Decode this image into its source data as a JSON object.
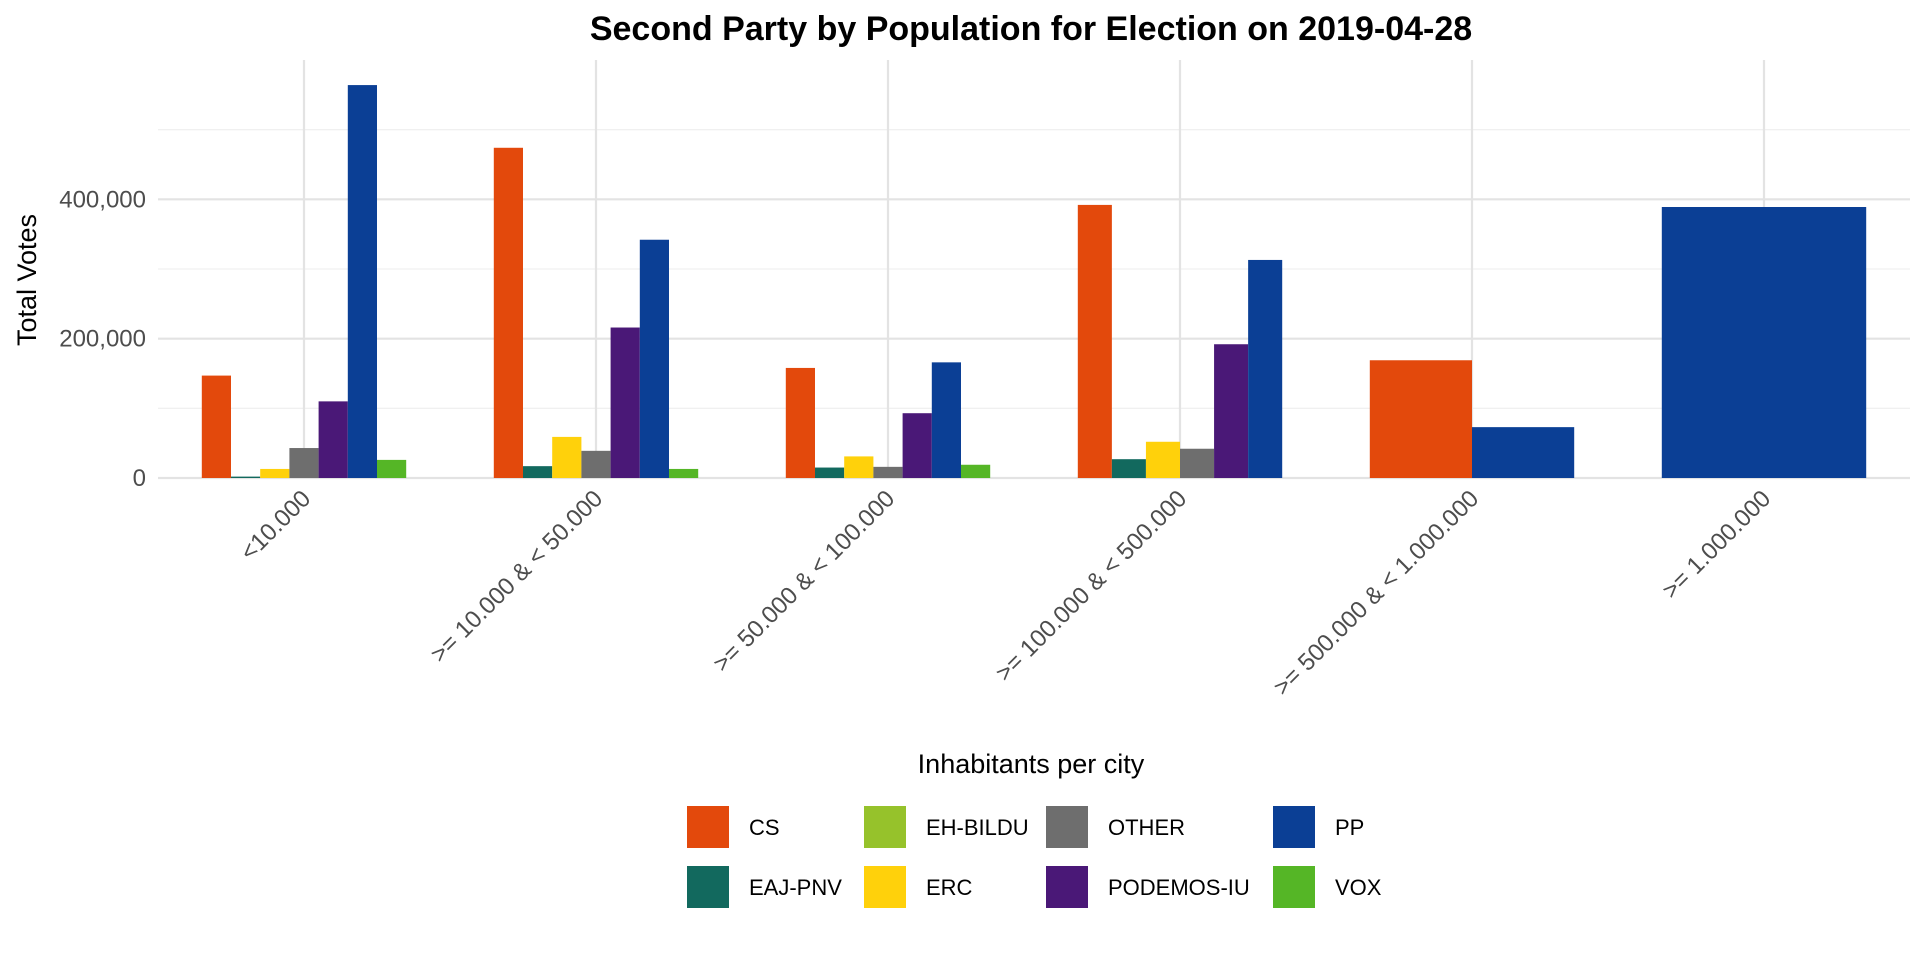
{
  "chart_data": {
    "type": "bar",
    "title": "Second Party by Population for Election on 2019-04-28",
    "xlabel": "Inhabitants per city",
    "ylabel": "Total Votes",
    "ylim": [
      0,
      600000
    ],
    "y_ticks": [
      0,
      200000,
      400000
    ],
    "y_tick_labels": [
      "0",
      "200,000",
      "400,000"
    ],
    "grid": true,
    "legend_position": "bottom",
    "categories": [
      "<10.000",
      ">= 10.000 & < 50.000",
      ">= 50.000 & < 100.000",
      ">= 100.000 & < 500.000",
      ">= 500.000 & < 1.000.000",
      ">= 1.000.000"
    ],
    "series": [
      {
        "name": "CS",
        "color": "#E3490C",
        "values": [
          147000,
          474000,
          158000,
          392000,
          169000,
          null
        ]
      },
      {
        "name": "EAJ-PNV",
        "color": "#12695E",
        "values": [
          2000,
          17000,
          15000,
          27000,
          null,
          null
        ]
      },
      {
        "name": "EH-BILDU",
        "color": "#96C22B",
        "values": [
          null,
          null,
          null,
          null,
          null,
          null
        ]
      },
      {
        "name": "ERC",
        "color": "#FFD10B",
        "values": [
          13000,
          59000,
          31000,
          52000,
          null,
          null
        ]
      },
      {
        "name": "OTHER",
        "color": "#6E6E6E",
        "values": [
          43000,
          39000,
          16000,
          42000,
          null,
          null
        ]
      },
      {
        "name": "PODEMOS-IU",
        "color": "#4A1877",
        "values": [
          110000,
          216000,
          93000,
          192000,
          null,
          null
        ]
      },
      {
        "name": "PP",
        "color": "#0B3F95",
        "values": [
          564000,
          342000,
          166000,
          313000,
          73000,
          389000
        ]
      },
      {
        "name": "VOX",
        "color": "#55B626",
        "values": [
          26000,
          13000,
          19000,
          null,
          null,
          null
        ]
      }
    ]
  }
}
